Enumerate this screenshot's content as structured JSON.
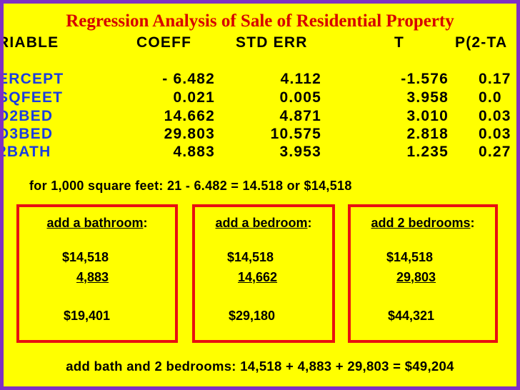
{
  "title": "Regression Analysis of Sale of Residential Property",
  "table": {
    "headers": [
      "RIABLE",
      "COEFF",
      "STD ERR",
      "T",
      "P(2-TA"
    ],
    "rows": [
      {
        "name": "ERCEPT",
        "coeff": "- 6.482",
        "stderr": "4.112",
        "t": "-1.576",
        "p": "0.17"
      },
      {
        "name": "SQFEET",
        "coeff": "0.021",
        "stderr": "0.005",
        "t": "3.958",
        "p": "0.0"
      },
      {
        "name": "D2BED",
        "coeff": "14.662",
        "stderr": "4.871",
        "t": "3.010",
        "p": "0.03"
      },
      {
        "name": "D3BED",
        "coeff": "29.803",
        "stderr": "10.575",
        "t": "2.818",
        "p": "0.03"
      },
      {
        "name": "2BATH",
        "coeff": "4.883",
        "stderr": "3.953",
        "t": "1.235",
        "p": "0.27"
      }
    ]
  },
  "calc_line": "for 1,000 square feet:  21 - 6.482 = 14.518   or    $14,518",
  "boxes": [
    {
      "label": "add a bathroom",
      "suffix": ":",
      "base": "$14,518",
      "addend": "4,883",
      "total": "$19,401"
    },
    {
      "label": "add a bedroom",
      "suffix": ":",
      "base": "$14,518",
      "addend": "14,662",
      "total": "$29,180"
    },
    {
      "label": "add 2 bedrooms",
      "suffix": ":",
      "base": "$14,518",
      "addend": "29,803",
      "total": "$44,321"
    }
  ],
  "summary": "add bath and 2 bedrooms: 14,518 + 4,883 + 29,803 = $49,204",
  "colors": {
    "frame": "#7f2fc4",
    "background": "#ffff00",
    "title": "#d60000",
    "variable": "#1a3de0",
    "box_border": "#e81010"
  }
}
